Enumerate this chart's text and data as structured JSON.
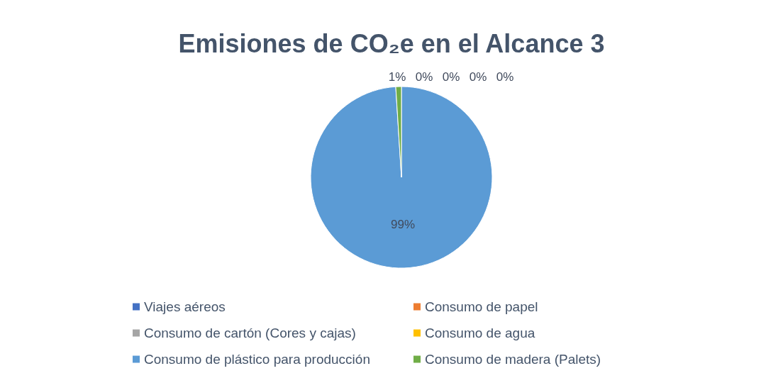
{
  "chart_data": {
    "type": "pie",
    "title": "Emisiones de CO₂e en el Alcance 3",
    "categories": [
      "Viajes aéreos",
      "Consumo de papel",
      "Consumo de cartón (Cores y cajas)",
      "Consumo de agua",
      "Consumo de plástico para producción",
      "Consumo de madera (Palets)"
    ],
    "values": [
      0,
      0,
      0,
      0,
      99,
      1
    ],
    "colors": [
      "#4472c4",
      "#ed7d31",
      "#a5a5a5",
      "#ffc000",
      "#5b9bd5",
      "#70ad47"
    ],
    "value_labels": [
      "0%",
      "0%",
      "0%",
      "0%",
      "99%",
      "1%"
    ],
    "legend": "bottom"
  }
}
